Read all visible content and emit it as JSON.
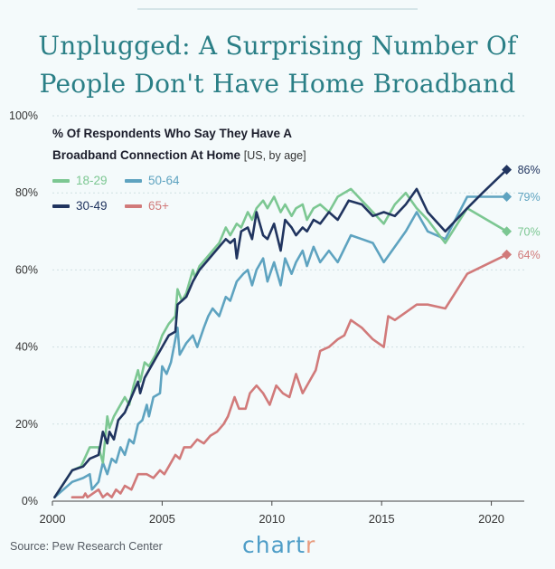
{
  "title_lines": [
    "Unplugged: A Surprising Number Of",
    "People Don't Have Home Broadband"
  ],
  "subtitle_line1": "% Of Respondents Who Say They Have A",
  "subtitle_line2": "Broadband Connection At Home",
  "subtitle_note": "[US, by age]",
  "source": "Source: Pew Research Center",
  "brand": {
    "main": "chart",
    "accent": "r"
  },
  "chart_data": {
    "type": "line",
    "title": "Unplugged: A Surprising Number Of People Don't Have Home Broadband",
    "subtitle": "% Of Respondents Who Say They Have A Broadband Connection At Home [US, by age]",
    "xlabel": "",
    "ylabel": "",
    "xlim": [
      2000,
      2021.5
    ],
    "ylim": [
      0,
      100
    ],
    "x_ticks": [
      2000,
      2005,
      2010,
      2015,
      2020
    ],
    "y_ticks": [
      0,
      20,
      40,
      60,
      80,
      100
    ],
    "y_tick_labels": [
      "0%",
      "20%",
      "40%",
      "60%",
      "80%",
      "100%"
    ],
    "grid": "horizontal",
    "series": [
      {
        "name": "18-29",
        "color": "#7cc792",
        "end_label": "70%",
        "points": [
          [
            2000.1,
            1
          ],
          [
            2000.9,
            8
          ],
          [
            2001.3,
            9
          ],
          [
            2001.7,
            14
          ],
          [
            2002.1,
            14
          ],
          [
            2002.3,
            10
          ],
          [
            2002.5,
            22
          ],
          [
            2002.6,
            19
          ],
          [
            2002.8,
            22
          ],
          [
            2003.0,
            24
          ],
          [
            2003.3,
            27
          ],
          [
            2003.5,
            25
          ],
          [
            2003.7,
            30
          ],
          [
            2003.9,
            34
          ],
          [
            2004.0,
            31
          ],
          [
            2004.2,
            36
          ],
          [
            2004.4,
            35
          ],
          [
            2004.7,
            38
          ],
          [
            2005.0,
            43
          ],
          [
            2005.3,
            46
          ],
          [
            2005.6,
            48
          ],
          [
            2005.7,
            55
          ],
          [
            2005.9,
            52
          ],
          [
            2006.1,
            54
          ],
          [
            2006.4,
            60
          ],
          [
            2006.5,
            58
          ],
          [
            2006.7,
            61
          ],
          [
            2007.0,
            63
          ],
          [
            2007.3,
            65
          ],
          [
            2007.6,
            67
          ],
          [
            2007.9,
            71
          ],
          [
            2008.1,
            69
          ],
          [
            2008.4,
            72
          ],
          [
            2008.6,
            71
          ],
          [
            2008.9,
            75
          ],
          [
            2009.1,
            73
          ],
          [
            2009.3,
            76
          ],
          [
            2009.6,
            78
          ],
          [
            2009.8,
            76
          ],
          [
            2010.1,
            79
          ],
          [
            2010.4,
            75
          ],
          [
            2010.6,
            77
          ],
          [
            2010.9,
            74
          ],
          [
            2011.1,
            76
          ],
          [
            2011.4,
            77
          ],
          [
            2011.6,
            73
          ],
          [
            2011.9,
            76
          ],
          [
            2012.2,
            77
          ],
          [
            2012.6,
            75
          ],
          [
            2013.0,
            79
          ],
          [
            2013.6,
            81
          ],
          [
            2014.1,
            78
          ],
          [
            2014.6,
            75
          ],
          [
            2015.1,
            72
          ],
          [
            2015.6,
            77
          ],
          [
            2016.1,
            80
          ],
          [
            2016.6,
            76
          ],
          [
            2017.1,
            73
          ],
          [
            2017.9,
            67
          ],
          [
            2018.9,
            76
          ],
          [
            2020.7,
            70
          ]
        ]
      },
      {
        "name": "30-49",
        "color": "#20345f",
        "end_label": "86%",
        "points": [
          [
            2000.1,
            1
          ],
          [
            2000.9,
            8
          ],
          [
            2001.4,
            9
          ],
          [
            2001.7,
            11
          ],
          [
            2002.1,
            12
          ],
          [
            2002.3,
            18
          ],
          [
            2002.5,
            15
          ],
          [
            2002.6,
            18
          ],
          [
            2002.8,
            16
          ],
          [
            2003.0,
            21
          ],
          [
            2003.3,
            23
          ],
          [
            2003.6,
            27
          ],
          [
            2003.9,
            31
          ],
          [
            2004.0,
            28
          ],
          [
            2004.2,
            32
          ],
          [
            2004.4,
            34
          ],
          [
            2004.7,
            37
          ],
          [
            2005.0,
            40
          ],
          [
            2005.3,
            43
          ],
          [
            2005.6,
            44
          ],
          [
            2005.7,
            51
          ],
          [
            2005.9,
            52
          ],
          [
            2006.1,
            53
          ],
          [
            2006.4,
            57
          ],
          [
            2006.7,
            60
          ],
          [
            2007.0,
            62
          ],
          [
            2007.3,
            64
          ],
          [
            2007.6,
            66
          ],
          [
            2007.9,
            68
          ],
          [
            2008.1,
            67
          ],
          [
            2008.3,
            68
          ],
          [
            2008.4,
            63
          ],
          [
            2008.6,
            70
          ],
          [
            2008.9,
            71
          ],
          [
            2009.1,
            68
          ],
          [
            2009.3,
            75
          ],
          [
            2009.6,
            69
          ],
          [
            2009.8,
            68
          ],
          [
            2010.1,
            72
          ],
          [
            2010.4,
            65
          ],
          [
            2010.6,
            73
          ],
          [
            2010.9,
            71
          ],
          [
            2011.1,
            69
          ],
          [
            2011.4,
            71
          ],
          [
            2011.6,
            70
          ],
          [
            2011.9,
            73
          ],
          [
            2012.2,
            72
          ],
          [
            2012.6,
            75
          ],
          [
            2013.0,
            73
          ],
          [
            2013.5,
            78
          ],
          [
            2014.1,
            77
          ],
          [
            2014.6,
            74
          ],
          [
            2015.1,
            75
          ],
          [
            2015.6,
            74
          ],
          [
            2016.1,
            77
          ],
          [
            2016.6,
            81
          ],
          [
            2017.1,
            75
          ],
          [
            2017.9,
            70
          ],
          [
            2018.9,
            76
          ],
          [
            2019.6,
            80
          ],
          [
            2020.7,
            86
          ]
        ]
      },
      {
        "name": "50-64",
        "color": "#5ea3c0",
        "end_label": "79%",
        "points": [
          [
            2000.1,
            1
          ],
          [
            2000.9,
            5
          ],
          [
            2001.4,
            6
          ],
          [
            2001.7,
            7
          ],
          [
            2001.8,
            3
          ],
          [
            2002.1,
            5
          ],
          [
            2002.3,
            10
          ],
          [
            2002.5,
            7
          ],
          [
            2002.7,
            11
          ],
          [
            2002.9,
            10
          ],
          [
            2003.1,
            14
          ],
          [
            2003.3,
            12
          ],
          [
            2003.5,
            16
          ],
          [
            2003.7,
            15
          ],
          [
            2003.9,
            20
          ],
          [
            2004.1,
            21
          ],
          [
            2004.3,
            25
          ],
          [
            2004.4,
            22
          ],
          [
            2004.6,
            27
          ],
          [
            2004.9,
            28
          ],
          [
            2005.0,
            35
          ],
          [
            2005.2,
            33
          ],
          [
            2005.4,
            36
          ],
          [
            2005.6,
            42
          ],
          [
            2005.7,
            45
          ],
          [
            2005.8,
            38
          ],
          [
            2006.1,
            41
          ],
          [
            2006.4,
            43
          ],
          [
            2006.6,
            40
          ],
          [
            2006.9,
            45
          ],
          [
            2007.1,
            48
          ],
          [
            2007.3,
            50
          ],
          [
            2007.6,
            48
          ],
          [
            2007.9,
            53
          ],
          [
            2008.1,
            52
          ],
          [
            2008.4,
            57
          ],
          [
            2008.7,
            59
          ],
          [
            2008.9,
            60
          ],
          [
            2009.1,
            56
          ],
          [
            2009.3,
            60
          ],
          [
            2009.6,
            63
          ],
          [
            2009.8,
            57
          ],
          [
            2010.1,
            62
          ],
          [
            2010.4,
            56
          ],
          [
            2010.6,
            63
          ],
          [
            2010.9,
            59
          ],
          [
            2011.1,
            62
          ],
          [
            2011.4,
            65
          ],
          [
            2011.6,
            61
          ],
          [
            2011.9,
            66
          ],
          [
            2012.2,
            62
          ],
          [
            2012.6,
            65
          ],
          [
            2013.0,
            62
          ],
          [
            2013.6,
            69
          ],
          [
            2014.1,
            68
          ],
          [
            2014.6,
            67
          ],
          [
            2015.1,
            62
          ],
          [
            2015.6,
            66
          ],
          [
            2016.1,
            70
          ],
          [
            2016.6,
            75
          ],
          [
            2017.1,
            70
          ],
          [
            2017.9,
            68
          ],
          [
            2018.9,
            79
          ],
          [
            2020.7,
            79
          ]
        ]
      },
      {
        "name": "65+",
        "color": "#d17a7a",
        "end_label": "64%",
        "points": [
          [
            2000.9,
            1
          ],
          [
            2001.4,
            1
          ],
          [
            2001.5,
            2
          ],
          [
            2001.6,
            1
          ],
          [
            2002.1,
            3
          ],
          [
            2002.3,
            1
          ],
          [
            2002.5,
            2
          ],
          [
            2002.7,
            1
          ],
          [
            2002.9,
            3
          ],
          [
            2003.1,
            2
          ],
          [
            2003.3,
            4
          ],
          [
            2003.6,
            3
          ],
          [
            2003.9,
            7
          ],
          [
            2004.3,
            7
          ],
          [
            2004.6,
            6
          ],
          [
            2004.9,
            8
          ],
          [
            2005.1,
            7
          ],
          [
            2005.3,
            9
          ],
          [
            2005.6,
            12
          ],
          [
            2005.8,
            11
          ],
          [
            2006.0,
            14
          ],
          [
            2006.3,
            14
          ],
          [
            2006.6,
            16
          ],
          [
            2006.9,
            15
          ],
          [
            2007.2,
            17
          ],
          [
            2007.5,
            18
          ],
          [
            2007.8,
            20
          ],
          [
            2008.0,
            22
          ],
          [
            2008.3,
            27
          ],
          [
            2008.5,
            24
          ],
          [
            2008.8,
            24
          ],
          [
            2009.0,
            28
          ],
          [
            2009.3,
            30
          ],
          [
            2009.6,
            28
          ],
          [
            2009.9,
            25
          ],
          [
            2010.2,
            30
          ],
          [
            2010.5,
            28
          ],
          [
            2010.8,
            27
          ],
          [
            2011.1,
            33
          ],
          [
            2011.4,
            28
          ],
          [
            2011.7,
            31
          ],
          [
            2012.0,
            34
          ],
          [
            2012.2,
            39
          ],
          [
            2012.6,
            40
          ],
          [
            2013.0,
            42
          ],
          [
            2013.3,
            43
          ],
          [
            2013.6,
            47
          ],
          [
            2014.1,
            45
          ],
          [
            2014.6,
            42
          ],
          [
            2015.1,
            40
          ],
          [
            2015.3,
            48
          ],
          [
            2015.6,
            47
          ],
          [
            2016.1,
            49
          ],
          [
            2016.6,
            51
          ],
          [
            2017.1,
            51
          ],
          [
            2017.9,
            50
          ],
          [
            2018.9,
            59
          ],
          [
            2020.7,
            64
          ]
        ]
      }
    ]
  }
}
